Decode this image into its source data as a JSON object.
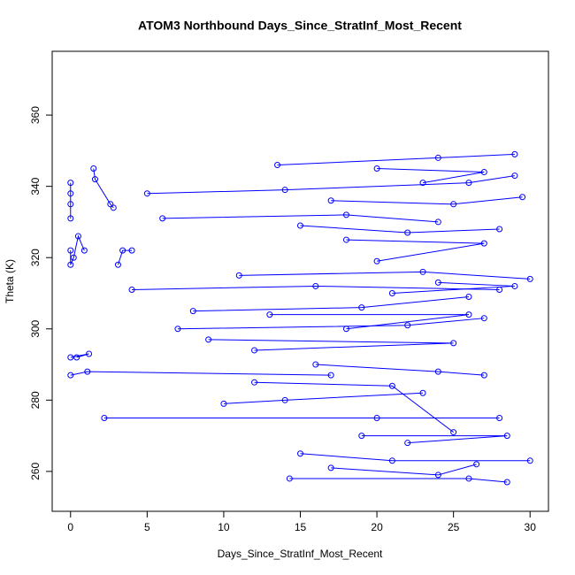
{
  "chart_data": {
    "type": "line",
    "title": "ATOM3 Northbound Days_Since_StratInf_Most_Recent",
    "x_label": "Days_Since_StratInf_Most_Recent",
    "y_label": "Theta (K)",
    "xlim": [
      -1.2,
      31.2
    ],
    "ylim": [
      248.8,
      377.9
    ],
    "xticks": [
      0,
      5,
      10,
      15,
      20,
      25,
      30
    ],
    "yticks": [
      260,
      280,
      300,
      320,
      340,
      360
    ],
    "markers": true,
    "series": [
      {
        "color": "#0000ff",
        "x": [
          0,
          0,
          0,
          0,
          null,
          0,
          0,
          0.2,
          0.5,
          0.9,
          null,
          0,
          1.2,
          0.4,
          null,
          0,
          1.1,
          17,
          null,
          1.5,
          1.6,
          2.6,
          2.8,
          null,
          3.1,
          3.4,
          4,
          null,
          2.2,
          20,
          28,
          null,
          5,
          14,
          26,
          29,
          null,
          6,
          18,
          24,
          null,
          4,
          16,
          28,
          null,
          7,
          22,
          27,
          null,
          9,
          25,
          12,
          null,
          10,
          14,
          23,
          null,
          15,
          21,
          30,
          null,
          14.3,
          26,
          28.5,
          null,
          13.5,
          24,
          29,
          null,
          18,
          27,
          20,
          null,
          11,
          23,
          30,
          null,
          8,
          19,
          26,
          null,
          16,
          24,
          27,
          null,
          12,
          21,
          25,
          null,
          19,
          28.5,
          22,
          null,
          17,
          25,
          29.5,
          null,
          20,
          27,
          23,
          null,
          15,
          22,
          28,
          null,
          13,
          26,
          18,
          null,
          21,
          29,
          24,
          null,
          17,
          24,
          26.5
        ],
        "values": [
          341,
          338,
          335,
          331,
          null,
          322,
          318,
          320,
          326,
          322,
          null,
          292,
          293,
          292,
          null,
          287,
          288,
          287,
          null,
          345,
          342,
          335,
          334,
          null,
          318,
          322,
          322,
          null,
          275,
          275,
          275,
          null,
          338,
          339,
          341,
          343,
          null,
          331,
          332,
          330,
          null,
          311,
          312,
          311,
          null,
          300,
          301,
          303,
          null,
          297,
          296,
          294,
          null,
          279,
          280,
          282,
          null,
          265,
          263,
          263,
          null,
          258,
          258,
          257,
          null,
          346,
          348,
          349,
          null,
          325,
          324,
          319,
          null,
          315,
          316,
          314,
          null,
          305,
          306,
          309,
          null,
          290,
          288,
          287,
          null,
          285,
          284,
          271,
          null,
          270,
          270,
          268,
          null,
          336,
          335,
          337,
          null,
          345,
          344,
          341,
          null,
          329,
          327,
          328,
          null,
          304,
          304,
          300,
          null,
          310,
          312,
          313,
          null,
          261,
          259,
          262
        ]
      }
    ]
  }
}
